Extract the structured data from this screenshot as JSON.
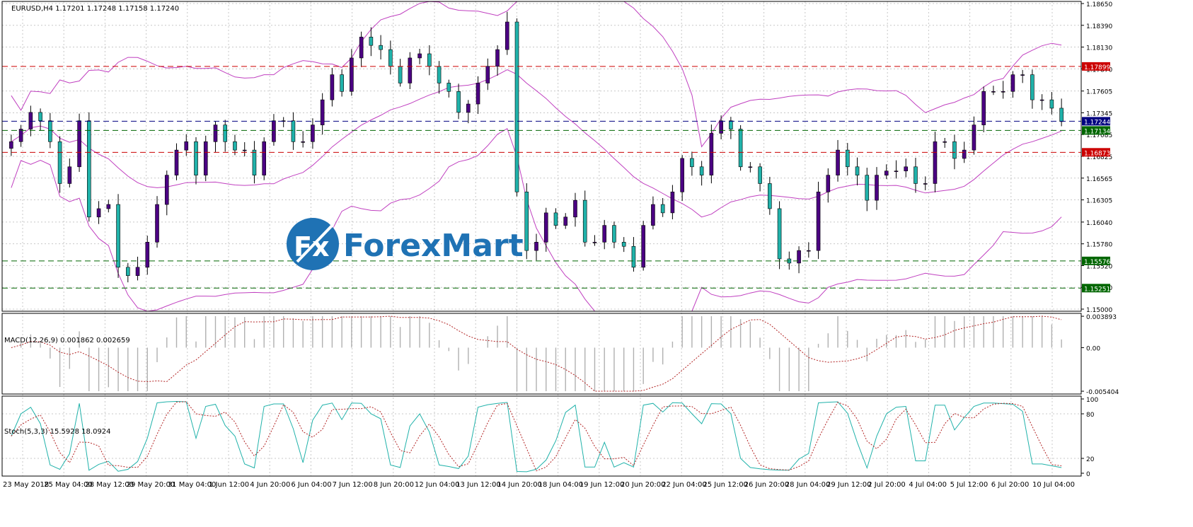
{
  "chart_data": [
    {
      "type": "candlestick",
      "title": "EURUSD,H4  1.17201 1.17248 1.17158 1.17240",
      "symbol": "EURUSD",
      "timeframe": "H4",
      "ohlc_readout": {
        "open": 1.17201,
        "high": 1.17248,
        "low": 1.17158,
        "close": 1.1724
      },
      "ylim": [
        1.15,
        1.1865
      ],
      "y_ticks": [
        "1.18650",
        "1.18390",
        "1.18130",
        "1.17870",
        "1.17605",
        "1.17345",
        "1.17085",
        "1.16825",
        "1.16565",
        "1.16305",
        "1.16040",
        "1.15780",
        "1.15520",
        "1.15260",
        "1.15000"
      ],
      "x_ticks": [
        "23 May 2018",
        "25 May 04:00",
        "28 May 12:00",
        "29 May 20:00",
        "31 May 04:00",
        "1 Jun 12:00",
        "4 Jun 20:00",
        "6 Jun 04:00",
        "7 Jun 12:00",
        "8 Jun 20:00",
        "12 Jun 04:00",
        "13 Jun 12:00",
        "14 Jun 20:00",
        "18 Jun 04:00",
        "19 Jun 12:00",
        "20 Jun 20:00",
        "22 Jun 04:00",
        "25 Jun 12:00",
        "26 Jun 20:00",
        "28 Jun 04:00",
        "29 Jun 12:00",
        "2 Jul 20:00",
        "4 Jul 04:00",
        "5 Jul 12:00",
        "6 Jul 20:00",
        "10 Jul 04:00"
      ],
      "close_path": [
        1.17,
        1.1715,
        1.1735,
        1.1725,
        1.17,
        1.165,
        1.167,
        1.1725,
        1.161,
        1.162,
        1.1625,
        1.155,
        1.154,
        1.155,
        1.158,
        1.1625,
        1.166,
        1.169,
        1.17,
        1.166,
        1.17,
        1.172,
        1.17,
        1.169,
        1.169,
        1.166,
        1.17,
        1.1725,
        1.1725,
        1.17,
        1.17,
        1.172,
        1.175,
        1.178,
        1.176,
        1.18,
        1.1825,
        1.1815,
        1.181,
        1.179,
        1.177,
        1.18,
        1.1805,
        1.179,
        1.177,
        1.176,
        1.1735,
        1.1745,
        1.177,
        1.179,
        1.181,
        1.1843,
        1.164,
        1.157,
        1.158,
        1.1615,
        1.16,
        1.161,
        1.163,
        1.158,
        1.158,
        1.16,
        1.158,
        1.1575,
        1.155,
        1.16,
        1.1625,
        1.1615,
        1.164,
        1.168,
        1.167,
        1.166,
        1.171,
        1.1725,
        1.1715,
        1.167,
        1.167,
        1.165,
        1.162,
        1.156,
        1.1555,
        1.157,
        1.157,
        1.164,
        1.166,
        1.169,
        1.167,
        1.166,
        1.163,
        1.166,
        1.1665,
        1.1665,
        1.167,
        1.165,
        1.165,
        1.17,
        1.17,
        1.168,
        1.169,
        1.172,
        1.176,
        1.176,
        1.176,
        1.178,
        1.178,
        1.175,
        1.175,
        1.174,
        1.1724
      ],
      "levels": [
        {
          "label": "1.17899",
          "value": 1.17899,
          "color": "#cc0000"
        },
        {
          "label": "1.17244",
          "value": 1.17244,
          "color": "#000080"
        },
        {
          "label": "1.17134",
          "value": 1.17134,
          "color": "#006600"
        },
        {
          "label": "1.16873",
          "value": 1.16873,
          "color": "#cc0000"
        },
        {
          "label": "1.15576",
          "value": 1.15576,
          "color": "#006600"
        },
        {
          "label": "1.15251",
          "value": 1.15251,
          "color": "#006600"
        }
      ],
      "colors": {
        "bull": "#4b0082",
        "bear": "#20b2aa",
        "bands": "#c040c0"
      }
    },
    {
      "type": "bar",
      "title": "MACD(12,26,9) 0.001862 0.002659",
      "y_ticks": [
        "0.003893",
        "0.00",
        "-0.005404"
      ],
      "ylim": [
        -0.0054,
        0.0039
      ]
    },
    {
      "type": "line",
      "title": "Stoch(5,3,3) 15.5928 18.0924",
      "y_ticks": [
        "100",
        "80",
        "20",
        "0"
      ],
      "ylim": [
        0,
        100
      ]
    }
  ],
  "logo": {
    "text": "ForexMart",
    "mark": "Fx"
  }
}
